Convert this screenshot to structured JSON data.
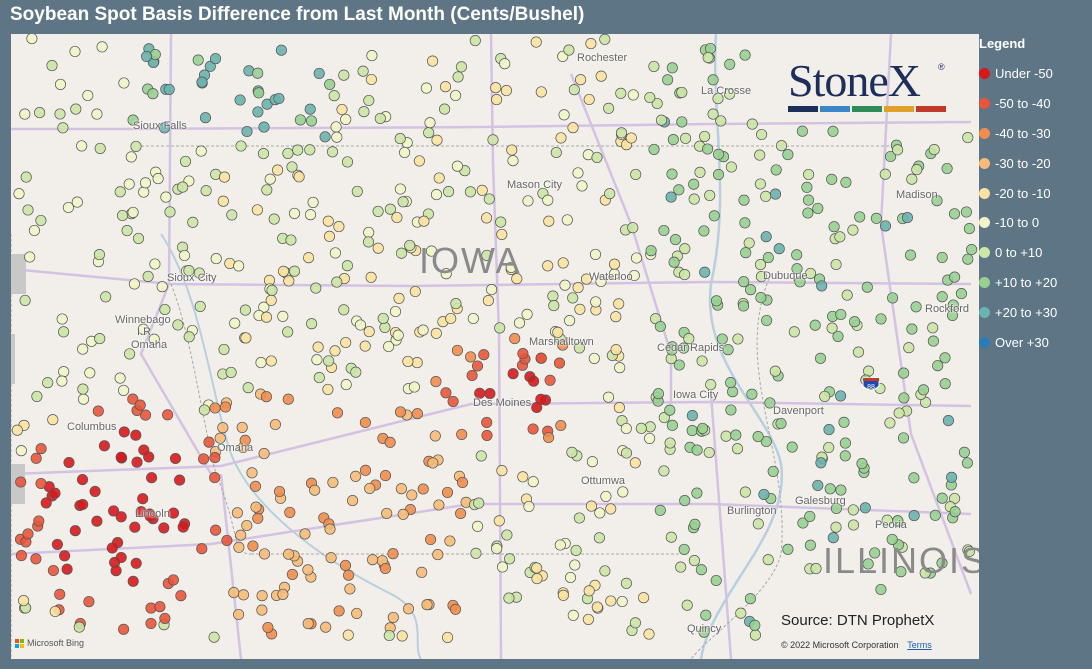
{
  "title": "Soybean Spot Basis Difference from Last Month (Cents/Bushel)",
  "legend": {
    "title": "Legend",
    "items": [
      {
        "label": "Under -50",
        "color": "#d7191c"
      },
      {
        "label": "-50 to -40",
        "color": "#e8553a"
      },
      {
        "label": "-40 to -30",
        "color": "#f08d4e"
      },
      {
        "label": "-30 to -20",
        "color": "#f6bb78"
      },
      {
        "label": "-20 to -10",
        "color": "#fbe2a1"
      },
      {
        "label": "-10 to 0",
        "color": "#f1f5c8"
      },
      {
        "label": "0 to +10",
        "color": "#cbe6a6"
      },
      {
        "label": "+10 to +20",
        "color": "#98d091"
      },
      {
        "label": "+20 to +30",
        "color": "#6bb3ae"
      },
      {
        "label": "Over +30",
        "color": "#2c7bb6"
      }
    ]
  },
  "map": {
    "states": [
      {
        "name": "IOWA"
      },
      {
        "name": "ILLINOIS"
      }
    ],
    "cities": [
      {
        "name": "Rochester"
      },
      {
        "name": "La Crosse"
      },
      {
        "name": "Mason City"
      },
      {
        "name": "Madison"
      },
      {
        "name": "Sioux City"
      },
      {
        "name": "Waterloo"
      },
      {
        "name": "Dubuque"
      },
      {
        "name": "Rockford"
      },
      {
        "name": "Winnebago"
      },
      {
        "name": "I.R."
      },
      {
        "name": "Omaha"
      },
      {
        "name": "Marshalltown"
      },
      {
        "name": "Cedar Rapids"
      },
      {
        "name": "Iowa City"
      },
      {
        "name": "Davenport"
      },
      {
        "name": "Des Moines"
      },
      {
        "name": "Columbus"
      },
      {
        "name": "Omaha"
      },
      {
        "name": "Ottumwa"
      },
      {
        "name": "Burlington"
      },
      {
        "name": "Galesburg"
      },
      {
        "name": "Lincoln"
      },
      {
        "name": "Peoria"
      },
      {
        "name": "Quincy"
      },
      {
        "name": "Sioux Falls"
      }
    ],
    "highway_shield": "88"
  },
  "logo": {
    "text": "StoneX",
    "trademark": "®",
    "bar_colors": [
      "#1c2e5a",
      "#3a86c8",
      "#2e8b57",
      "#e0a02a",
      "#c0392b"
    ]
  },
  "source": "Source: DTN ProphetX",
  "attribution": {
    "bing": "Microsoft Bing",
    "bing_colors": [
      "#f25022",
      "#7fba00",
      "#00a4ef",
      "#ffb900"
    ],
    "copyright": "© 2022 Microsoft Corporation",
    "terms": "Terms"
  }
}
